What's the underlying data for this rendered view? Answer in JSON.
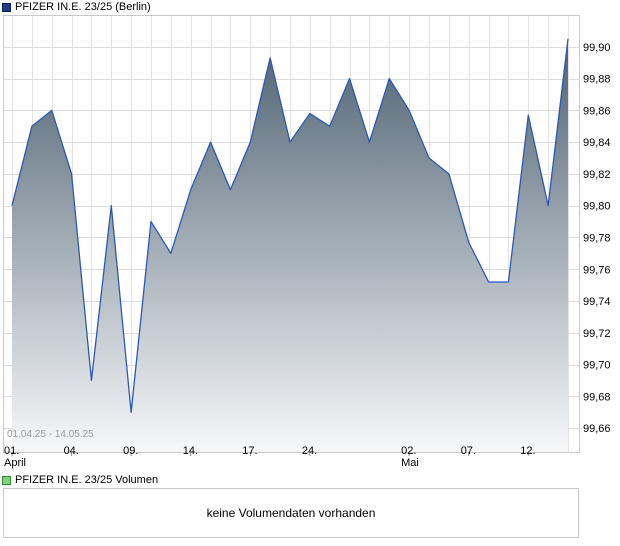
{
  "price_legend": {
    "label": "PFIZER IN.E. 23/25 (Berlin)",
    "color": "#1c3b8e"
  },
  "volume_legend": {
    "label": "PFIZER IN.E. 23/25 Volumen",
    "color": "#7fd07f"
  },
  "volume_panel": {
    "message": "keine Volumendaten vorhanden"
  },
  "chart_data": {
    "type": "area",
    "range_label": "01.04.25 - 14.05.25",
    "ylim": [
      99.645,
      99.92
    ],
    "y_ticks": [
      99.66,
      99.68,
      99.7,
      99.72,
      99.74,
      99.76,
      99.78,
      99.8,
      99.82,
      99.84,
      99.86,
      99.88,
      99.9
    ],
    "y_tick_labels": [
      "99,66",
      "99,68",
      "99,70",
      "99,72",
      "99,74",
      "99,76",
      "99,78",
      "99,80",
      "99,82",
      "99,84",
      "99,86",
      "99,88",
      "99,90"
    ],
    "x_ticks": [
      {
        "index": 0,
        "label": "01.",
        "sublabel": "April"
      },
      {
        "index": 3,
        "label": "04.",
        "sublabel": ""
      },
      {
        "index": 6,
        "label": "09.",
        "sublabel": ""
      },
      {
        "index": 9,
        "label": "14.",
        "sublabel": ""
      },
      {
        "index": 12,
        "label": "17.",
        "sublabel": ""
      },
      {
        "index": 15,
        "label": "24.",
        "sublabel": ""
      },
      {
        "index": 20,
        "label": "02.",
        "sublabel": "Mai"
      },
      {
        "index": 23,
        "label": "07.",
        "sublabel": ""
      },
      {
        "index": 26,
        "label": "12.",
        "sublabel": ""
      }
    ],
    "grid": true,
    "series": [
      {
        "values": [
          99.8,
          99.85,
          99.86,
          99.82,
          99.69,
          99.8,
          99.67,
          99.79,
          99.77,
          99.81,
          99.84,
          99.81,
          99.84,
          99.893,
          99.84,
          99.858,
          99.85,
          99.88,
          99.84,
          99.88,
          99.86,
          99.83,
          99.82,
          99.777,
          99.752,
          99.752,
          99.857,
          99.8,
          99.905
        ],
        "line_color": "#2b58b8",
        "fill_top_color": "#4f6272",
        "fill_bottom_color": "#f7f8fa"
      }
    ]
  }
}
